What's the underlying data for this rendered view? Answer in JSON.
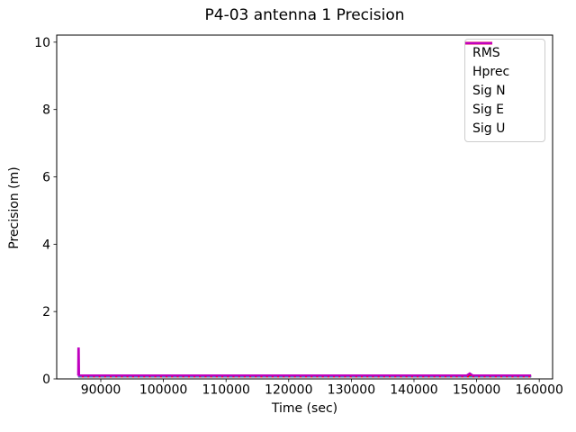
{
  "figure": {
    "background": "#ffffff",
    "frame_color": "#000000"
  },
  "chart_data": {
    "type": "line",
    "title": "P4-03 antenna 1 Precision",
    "xlabel": "Time (sec)",
    "ylabel": "Precision (m)",
    "xlim": [
      82960,
      162130
    ],
    "ylim": [
      0,
      10.21
    ],
    "x_ticks": [
      90000,
      100000,
      110000,
      120000,
      130000,
      140000,
      150000,
      160000
    ],
    "x_tick_labels": [
      "90000",
      "100000",
      "110000",
      "120000",
      "130000",
      "140000",
      "150000",
      "160000"
    ],
    "y_ticks": [
      0,
      2,
      4,
      6,
      8,
      10
    ],
    "y_tick_labels": [
      "0",
      "2",
      "4",
      "6",
      "8",
      "10"
    ],
    "grid": false,
    "legend_position": "upper right",
    "series": [
      {
        "name": "RMS",
        "color": "#008000",
        "style": "solid",
        "width": 2,
        "points": [
          [
            86400,
            0.08
          ],
          [
            158700,
            0.08
          ]
        ]
      },
      {
        "name": "Hprec",
        "color": "#ff0000",
        "style": "solid",
        "width": 3,
        "points": [
          [
            86400,
            0.08
          ],
          [
            158700,
            0.08
          ]
        ]
      },
      {
        "name": "Sig N",
        "color": "#0000ff",
        "style": "dashed",
        "width": 1,
        "points": [
          [
            86400,
            0.06
          ],
          [
            158700,
            0.06
          ]
        ]
      },
      {
        "name": "Sig E",
        "color": "#00bfbf",
        "style": "dashed",
        "width": 1,
        "points": [
          [
            86400,
            0.06
          ],
          [
            158700,
            0.06
          ]
        ]
      },
      {
        "name": "Sig U",
        "color": "#bf00bf",
        "style": "solid",
        "width": 2.5,
        "points": [
          [
            86400,
            0.1
          ],
          [
            86430,
            0.9
          ],
          [
            86470,
            0.9
          ],
          [
            86520,
            0.1
          ],
          [
            120000,
            0.1
          ],
          [
            148400,
            0.1
          ],
          [
            148900,
            0.16
          ],
          [
            149400,
            0.1
          ],
          [
            158700,
            0.1
          ]
        ]
      }
    ]
  }
}
